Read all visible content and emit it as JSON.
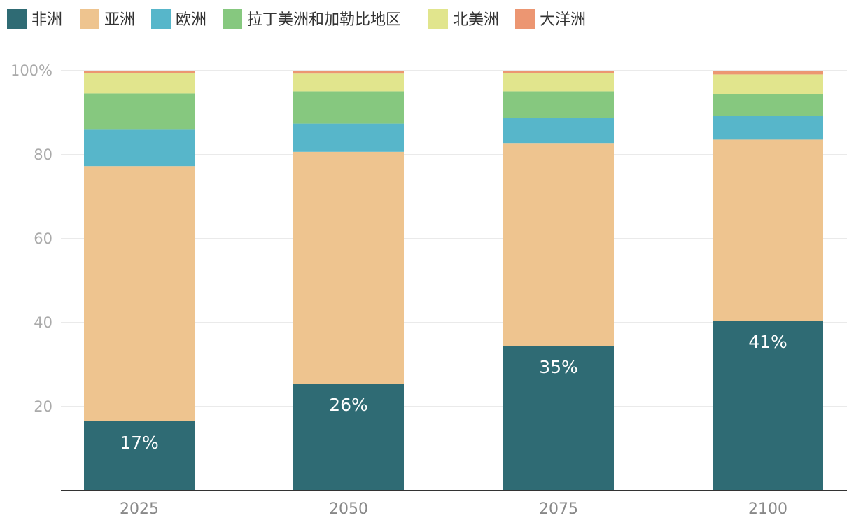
{
  "chart_data": {
    "type": "bar",
    "stacked": true,
    "categories": [
      "2025",
      "2050",
      "2075",
      "2100"
    ],
    "series": [
      {
        "name": "非洲",
        "color": "#2f6b74",
        "values": [
          16.5,
          25.5,
          34.5,
          40.5
        ]
      },
      {
        "name": "亚洲",
        "color": "#eec48f",
        "values": [
          60.8,
          55.2,
          48.3,
          43.1
        ]
      },
      {
        "name": "欧洲",
        "color": "#57b6ca",
        "values": [
          8.8,
          6.7,
          5.9,
          5.6
        ]
      },
      {
        "name": "拉丁美洲和加勒比地区",
        "color": "#86c87f",
        "values": [
          8.5,
          7.7,
          6.4,
          5.3
        ]
      },
      {
        "name": "北美洲",
        "color": "#e1e58d",
        "values": [
          4.8,
          4.2,
          4.3,
          4.6
        ]
      },
      {
        "name": "大洋洲",
        "color": "#ec9672",
        "values": [
          0.6,
          0.7,
          0.6,
          0.9
        ]
      }
    ],
    "data_labels": [
      "17%",
      "26%",
      "35%",
      "41%"
    ],
    "ylim": [
      0,
      100
    ],
    "yticks": [
      "20",
      "40",
      "60",
      "80",
      "100%"
    ],
    "ytick_values": [
      20,
      40,
      60,
      80,
      100
    ],
    "grid": true,
    "legend_position": "top",
    "xlabel": "",
    "ylabel": "",
    "title": ""
  }
}
